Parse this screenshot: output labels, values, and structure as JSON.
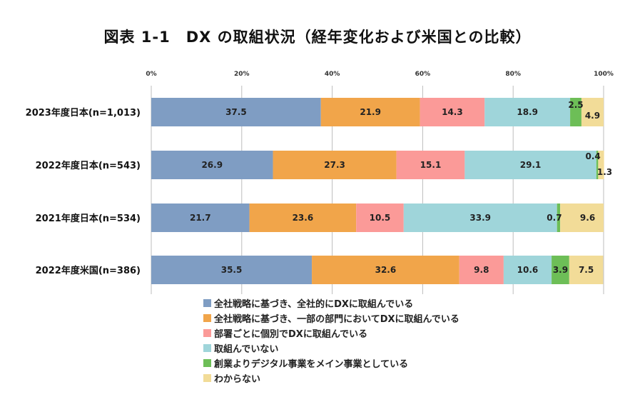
{
  "chart_data": {
    "type": "bar",
    "orientation": "horizontal",
    "stacked": true,
    "title": "図表 1-1　DX の取組状況（経年変化および米国との比較）",
    "xlim": [
      0,
      100
    ],
    "xticks": [
      "0%",
      "20%",
      "40%",
      "60%",
      "80%",
      "100%"
    ],
    "categories": [
      "2023年度日本(n=1,013)",
      "2022年度日本(n=543)",
      "2021年度日本(n=534)",
      "2022年度米国(n=386)"
    ],
    "series": [
      {
        "name": "全社戦略に基づき、全社的にDXに取組んでいる",
        "color": "#7f9dc3",
        "values": [
          37.5,
          26.9,
          21.7,
          35.5
        ]
      },
      {
        "name": "全社戦略に基づき、一部の部門においてDXに取組んでいる",
        "color": "#f1a54a",
        "values": [
          21.9,
          27.3,
          23.6,
          32.6
        ]
      },
      {
        "name": "部署ごとに個別でDXに取組んでいる",
        "color": "#fb9a98",
        "values": [
          14.3,
          15.1,
          10.5,
          9.8
        ]
      },
      {
        "name": "取組んでいない",
        "color": "#9fd5da",
        "values": [
          18.9,
          29.1,
          33.9,
          10.6
        ]
      },
      {
        "name": "創業よりデジタル事業をメイン事業としている",
        "color": "#6dbe57",
        "values": [
          2.5,
          0.4,
          0.7,
          3.9
        ]
      },
      {
        "name": "わからない",
        "color": "#f2dc98",
        "values": [
          4.9,
          1.3,
          9.6,
          7.5
        ]
      }
    ],
    "legend_position": "bottom"
  }
}
